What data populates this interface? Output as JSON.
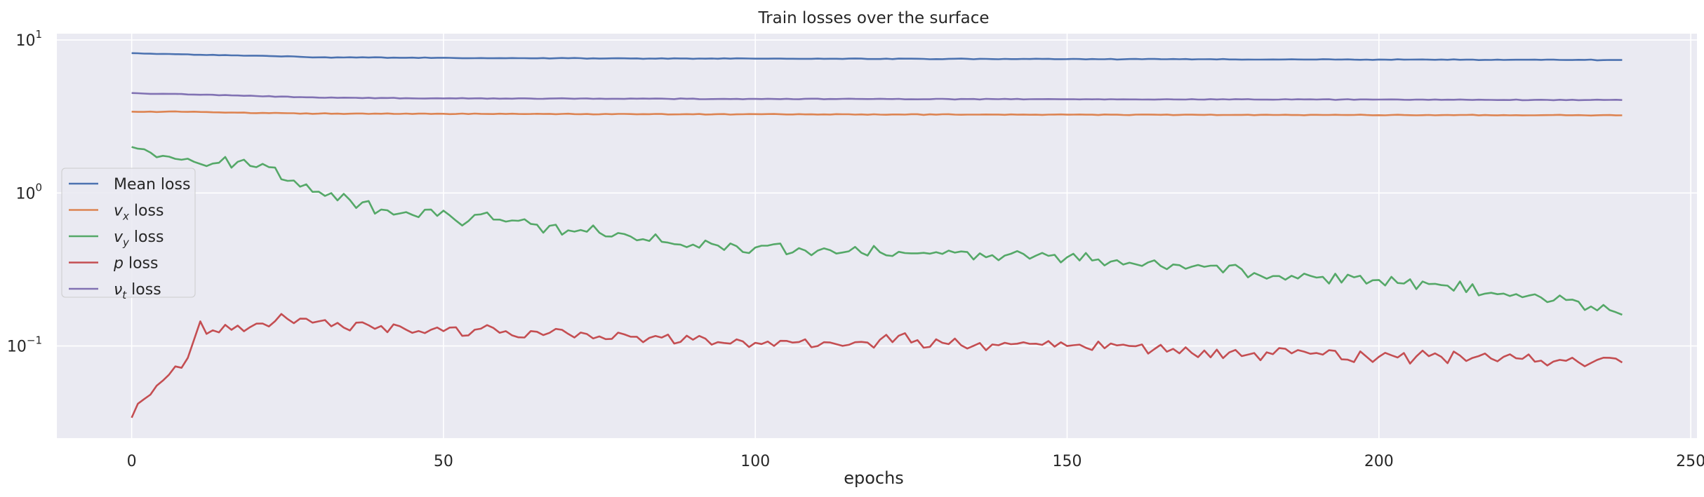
{
  "chart_data": {
    "type": "line",
    "title": "Train losses over the surface",
    "xlabel": "epochs",
    "ylabel": "",
    "yscale": "log",
    "xlim": [
      -12,
      251
    ],
    "ylim": [
      0.025,
      11
    ],
    "grid": true,
    "background": "#eaeaf2",
    "legend_position": "center-left",
    "x_ticks": [
      0,
      50,
      100,
      150,
      200,
      250
    ],
    "y_ticks": [
      {
        "value": 0.1,
        "base": "10",
        "exp": "−1"
      },
      {
        "value": 1,
        "base": "10",
        "exp": "0"
      },
      {
        "value": 10,
        "base": "10",
        "exp": "1"
      }
    ],
    "x": {
      "start": 0,
      "end": 239,
      "step": 1
    },
    "series": [
      {
        "name": "Mean loss",
        "label_parts": [
          {
            "text": "Mean loss",
            "italic": false
          }
        ],
        "color": "#4c72b0",
        "anchors": [
          [
            0,
            8.2
          ],
          [
            10,
            8.0
          ],
          [
            20,
            7.9
          ],
          [
            30,
            7.7
          ],
          [
            60,
            7.6
          ],
          [
            100,
            7.55
          ],
          [
            150,
            7.5
          ],
          [
            200,
            7.45
          ],
          [
            239,
            7.4
          ]
        ],
        "noise": 0.004
      },
      {
        "name": "v_x loss",
        "label_parts": [
          {
            "text": "v",
            "italic": true
          },
          {
            "text": "x",
            "italic": true,
            "sub": true
          },
          {
            "text": " loss",
            "italic": false
          }
        ],
        "color": "#dd8452",
        "anchors": [
          [
            0,
            3.4
          ],
          [
            10,
            3.4
          ],
          [
            15,
            3.35
          ],
          [
            30,
            3.3
          ],
          [
            80,
            3.28
          ],
          [
            150,
            3.25
          ],
          [
            239,
            3.22
          ]
        ],
        "noise": 0.004
      },
      {
        "name": "v_y loss",
        "label_parts": [
          {
            "text": "v",
            "italic": true
          },
          {
            "text": "y",
            "italic": true,
            "sub": true
          },
          {
            "text": " loss",
            "italic": false
          }
        ],
        "color": "#55a868",
        "anchors": [
          [
            0,
            2.0
          ],
          [
            5,
            1.75
          ],
          [
            10,
            1.6
          ],
          [
            12,
            1.5
          ],
          [
            17,
            1.6
          ],
          [
            21,
            1.55
          ],
          [
            25,
            1.2
          ],
          [
            30,
            1.02
          ],
          [
            35,
            0.9
          ],
          [
            40,
            0.78
          ],
          [
            45,
            0.72
          ],
          [
            48,
            0.78
          ],
          [
            52,
            0.66
          ],
          [
            55,
            0.72
          ],
          [
            60,
            0.65
          ],
          [
            65,
            0.62
          ],
          [
            70,
            0.57
          ],
          [
            75,
            0.55
          ],
          [
            80,
            0.52
          ],
          [
            85,
            0.48
          ],
          [
            90,
            0.46
          ],
          [
            100,
            0.44
          ],
          [
            110,
            0.42
          ],
          [
            120,
            0.41
          ],
          [
            130,
            0.4
          ],
          [
            140,
            0.39
          ],
          [
            150,
            0.38
          ],
          [
            160,
            0.35
          ],
          [
            170,
            0.33
          ],
          [
            180,
            0.3
          ],
          [
            190,
            0.28
          ],
          [
            200,
            0.27
          ],
          [
            210,
            0.25
          ],
          [
            220,
            0.22
          ],
          [
            230,
            0.2
          ],
          [
            239,
            0.16
          ]
        ],
        "noise": 0.07
      },
      {
        "name": "p loss",
        "label_parts": [
          {
            "text": "p",
            "italic": true
          },
          {
            "text": " loss",
            "italic": false
          }
        ],
        "color": "#c44e52",
        "anchors": [
          [
            0,
            0.034
          ],
          [
            2,
            0.045
          ],
          [
            4,
            0.055
          ],
          [
            6,
            0.065
          ],
          [
            8,
            0.072
          ],
          [
            10,
            0.11
          ],
          [
            11,
            0.145
          ],
          [
            12,
            0.12
          ],
          [
            20,
            0.14
          ],
          [
            25,
            0.15
          ],
          [
            30,
            0.145
          ],
          [
            40,
            0.135
          ],
          [
            50,
            0.125
          ],
          [
            60,
            0.125
          ],
          [
            70,
            0.12
          ],
          [
            80,
            0.115
          ],
          [
            90,
            0.11
          ],
          [
            100,
            0.105
          ],
          [
            110,
            0.1
          ],
          [
            120,
            0.11
          ],
          [
            130,
            0.105
          ],
          [
            140,
            0.105
          ],
          [
            150,
            0.1
          ],
          [
            160,
            0.1
          ],
          [
            170,
            0.09
          ],
          [
            180,
            0.09
          ],
          [
            190,
            0.09
          ],
          [
            200,
            0.085
          ],
          [
            210,
            0.085
          ],
          [
            220,
            0.085
          ],
          [
            230,
            0.08
          ],
          [
            239,
            0.078
          ]
        ],
        "noise": 0.08
      },
      {
        "name": "ν_t loss",
        "label_parts": [
          {
            "text": "ν",
            "italic": true
          },
          {
            "text": "t",
            "italic": true,
            "sub": true
          },
          {
            "text": " loss",
            "italic": false
          }
        ],
        "color": "#8172b3",
        "anchors": [
          [
            0,
            4.5
          ],
          [
            10,
            4.4
          ],
          [
            20,
            4.3
          ],
          [
            30,
            4.2
          ],
          [
            50,
            4.15
          ],
          [
            100,
            4.12
          ],
          [
            150,
            4.1
          ],
          [
            200,
            4.08
          ],
          [
            239,
            4.05
          ]
        ],
        "noise": 0.004
      }
    ]
  }
}
